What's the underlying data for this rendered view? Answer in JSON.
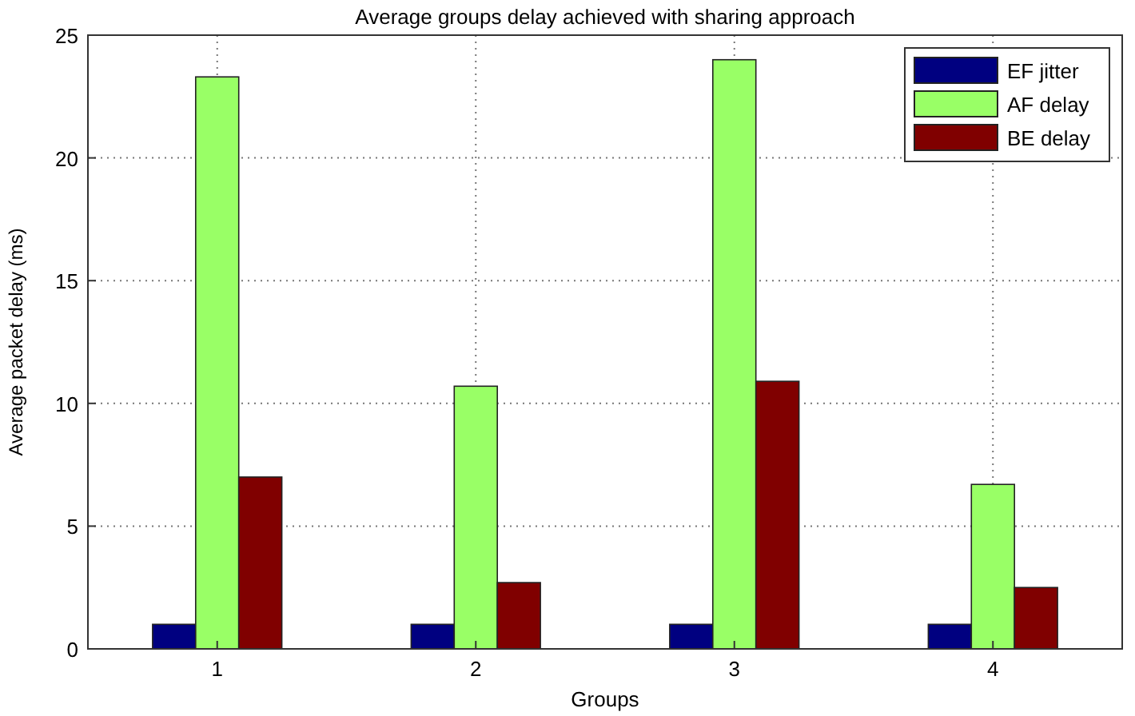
{
  "chart_data": {
    "type": "bar",
    "title": "Average groups delay achieved with sharing approach",
    "xlabel": "Groups",
    "ylabel": "Average packet delay (ms)",
    "categories": [
      "1",
      "2",
      "3",
      "4"
    ],
    "series": [
      {
        "name": "EF jitter",
        "color": "#000080",
        "values": [
          1,
          1,
          1,
          1
        ]
      },
      {
        "name": "AF delay",
        "color": "#99ff66",
        "values": [
          23.3,
          10.7,
          24,
          6.7
        ]
      },
      {
        "name": "BE delay",
        "color": "#800000",
        "values": [
          7,
          2.7,
          10.9,
          2.5
        ]
      }
    ],
    "ylim": [
      0,
      25
    ],
    "yticks": [
      0,
      5,
      10,
      15,
      20,
      25
    ],
    "grid": true,
    "legend": "top right"
  }
}
